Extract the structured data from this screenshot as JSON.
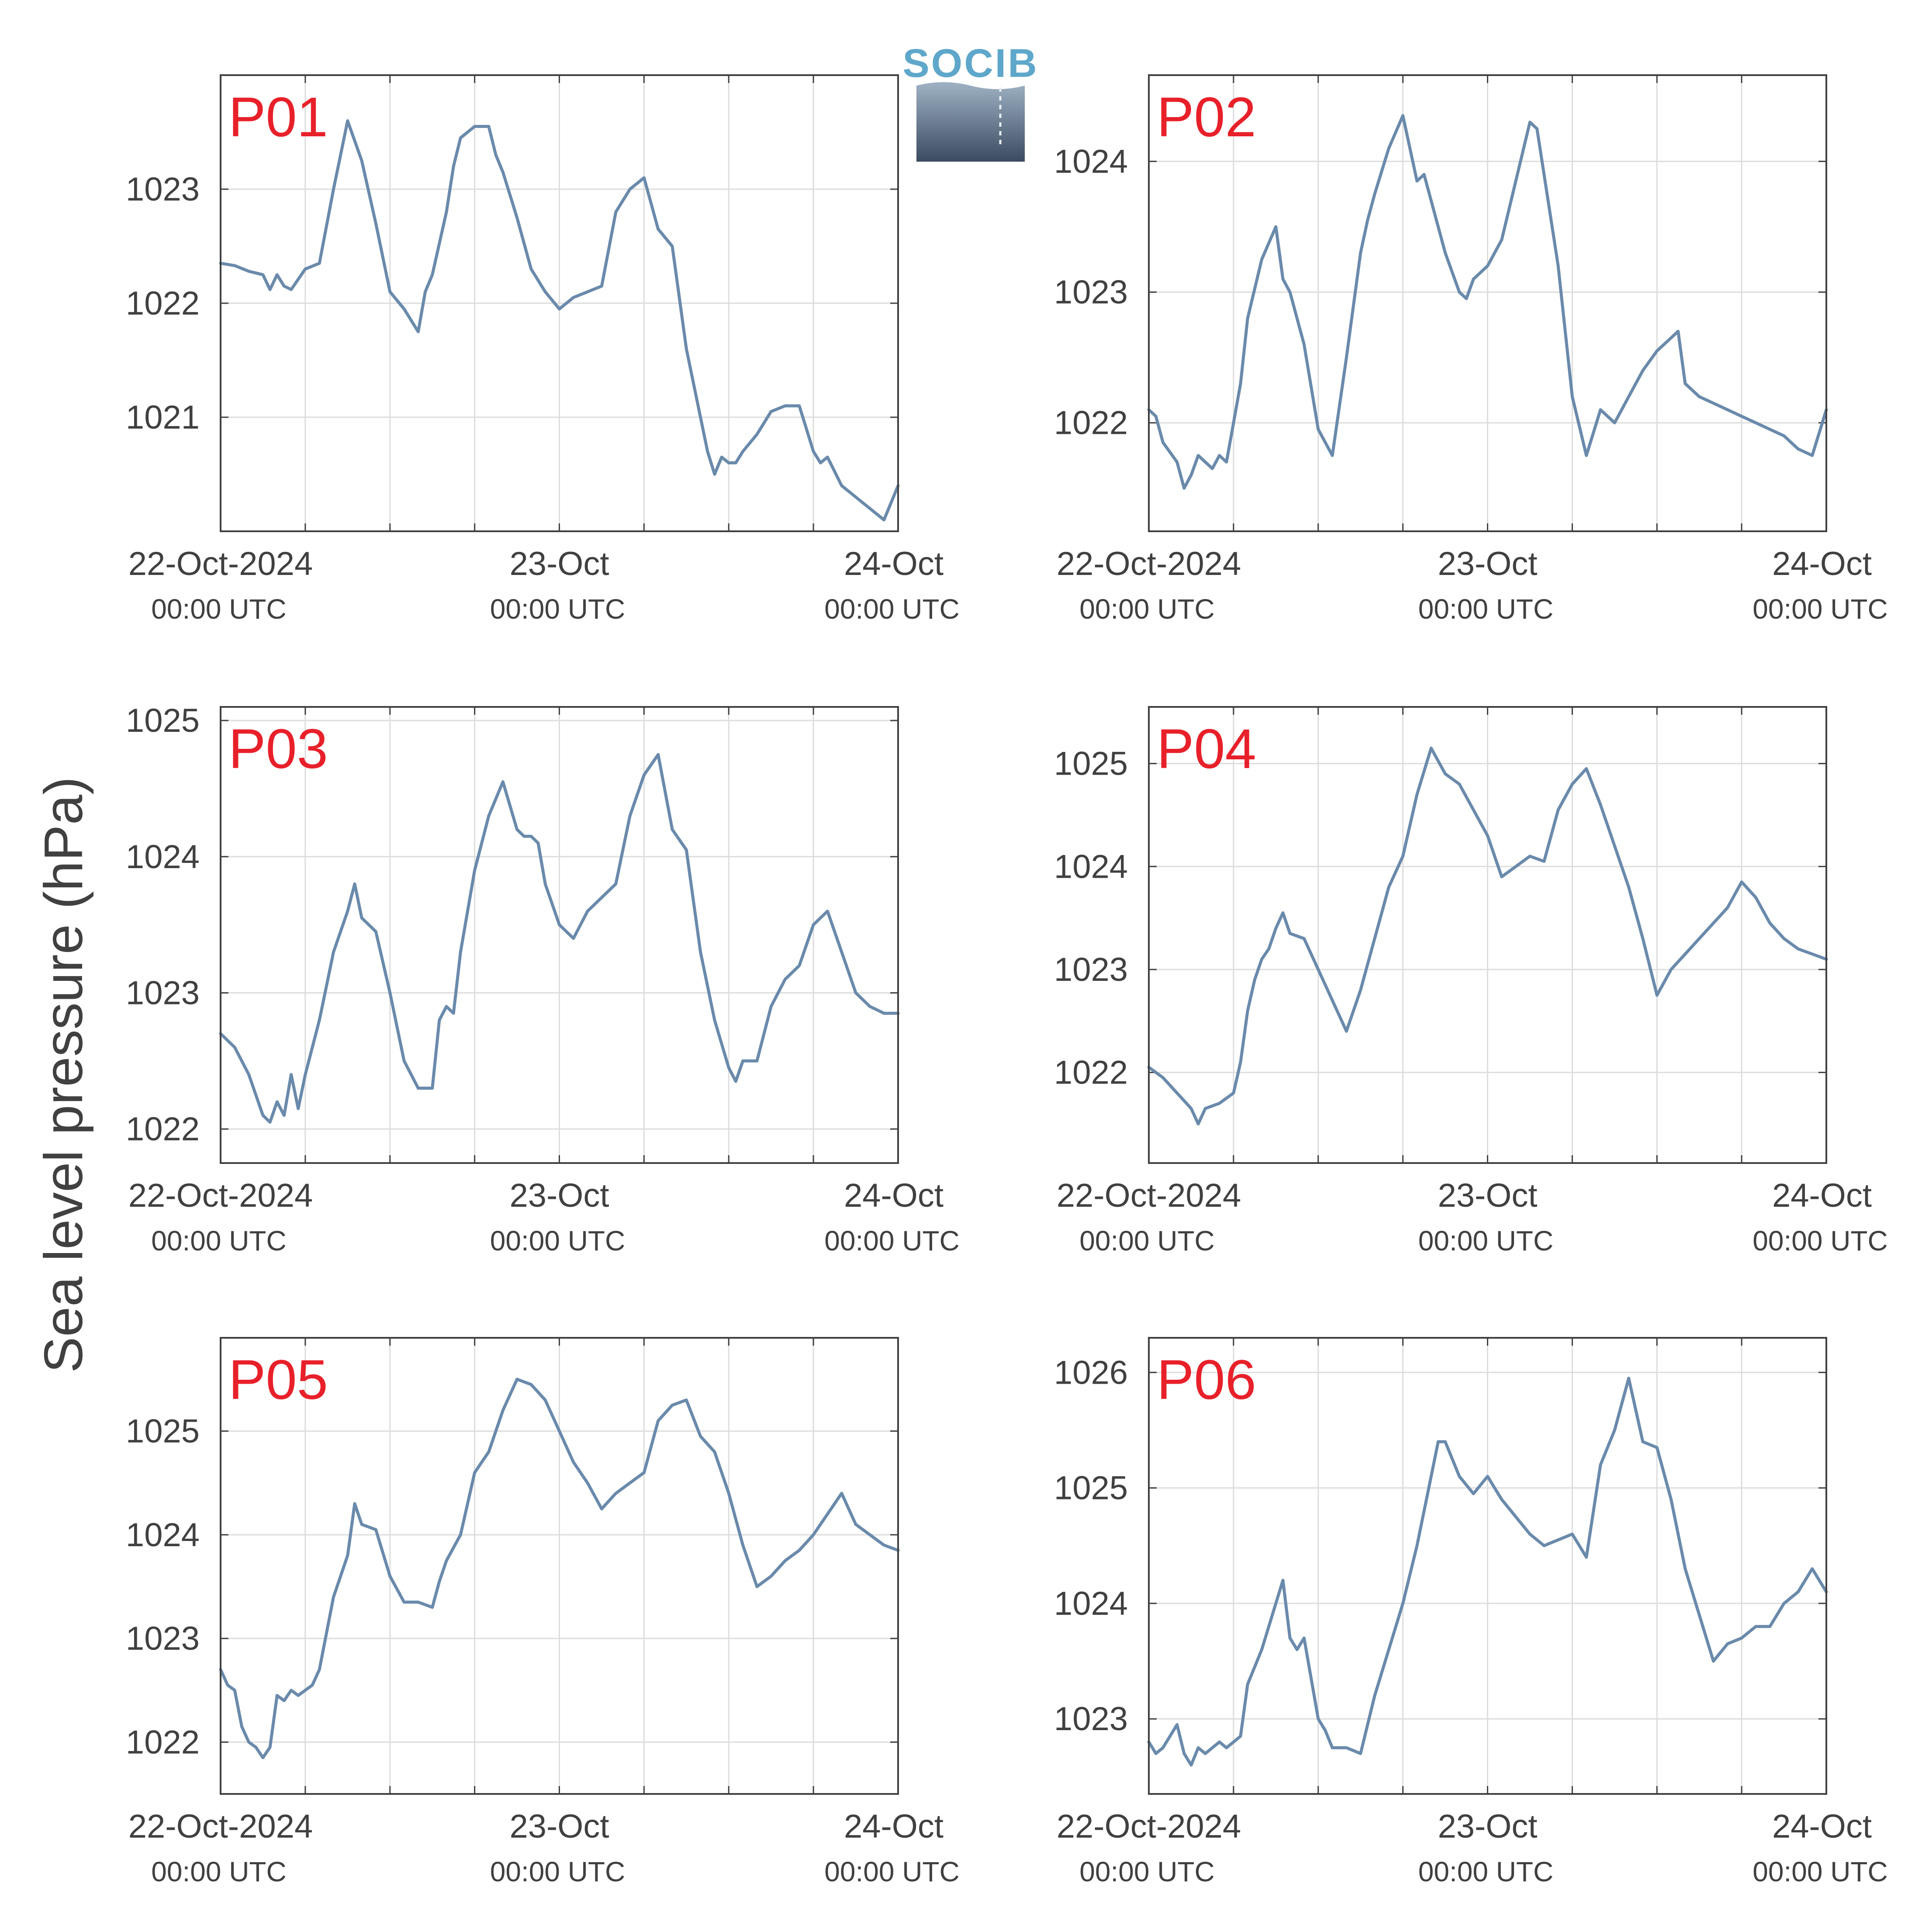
{
  "figure": {
    "ylabel": "Sea level pressure (hPa)",
    "logo_text": "SOCIB",
    "colors": {
      "line": "#6a8aab",
      "panel_label": "#e8202a",
      "grid": "#dddddd",
      "axis": "#404040"
    }
  },
  "chart_data": [
    {
      "type": "line",
      "title": "P01",
      "ylabel": "Sea level pressure (hPa)",
      "xlim_hours": [
        0,
        48
      ],
      "ylim": [
        20.0,
        24.0
      ],
      "yoffset": 1000,
      "yticks": [
        1021,
        1022,
        1023
      ],
      "xticks": [
        {
          "date": "22-Oct-2024",
          "time": "00:00 UTC"
        },
        {
          "date": "23-Oct",
          "time": "00:00 UTC"
        },
        {
          "date": "24-Oct",
          "time": "00:00 UTC"
        }
      ],
      "grid": true,
      "series": [
        {
          "x": [
            0,
            1,
            2,
            3,
            3.5,
            4,
            4.5,
            5,
            6,
            7,
            8,
            8.5,
            9,
            10,
            11,
            12,
            13,
            14,
            14.5,
            15,
            16,
            16.5,
            17,
            18,
            19,
            19.5,
            20,
            21,
            22,
            23,
            24,
            25,
            26,
            27,
            28,
            29,
            30,
            31,
            32,
            33,
            34,
            34.5,
            35,
            35.5,
            36,
            36.5,
            37,
            38,
            39,
            40,
            41,
            41.5,
            42,
            42.5,
            43,
            44,
            45,
            46,
            47,
            48
          ],
          "y": [
            22.35,
            22.33,
            22.28,
            22.25,
            22.12,
            22.25,
            22.15,
            22.12,
            22.3,
            22.35,
            23.0,
            23.3,
            23.6,
            23.25,
            22.7,
            22.1,
            21.95,
            21.75,
            22.1,
            22.25,
            22.8,
            23.2,
            23.45,
            23.55,
            23.55,
            23.3,
            23.15,
            22.75,
            22.3,
            22.1,
            21.95,
            22.05,
            22.1,
            22.15,
            22.8,
            23.0,
            23.1,
            22.65,
            22.5,
            21.6,
            21.0,
            20.7,
            20.5,
            20.65,
            20.6,
            20.6,
            20.7,
            20.85,
            21.05,
            21.1,
            21.1,
            20.9,
            20.7,
            20.6,
            20.65,
            20.4,
            20.3,
            20.2,
            20.1,
            20.4
          ]
        }
      ]
    },
    {
      "type": "line",
      "title": "P02",
      "ylabel": "Sea level pressure (hPa)",
      "xlim_hours": [
        0,
        48
      ],
      "ylim": [
        21.17,
        24.66
      ],
      "yoffset": 1000,
      "yticks": [
        1022,
        1023,
        1024
      ],
      "xticks": [
        {
          "date": "22-Oct-2024",
          "time": "00:00 UTC"
        },
        {
          "date": "23-Oct",
          "time": "00:00 UTC"
        },
        {
          "date": "24-Oct",
          "time": "00:00 UTC"
        }
      ],
      "grid": true,
      "series": [
        {
          "x": [
            0,
            0.5,
            1,
            2,
            2.5,
            3,
            3.5,
            4,
            4.5,
            5,
            5.5,
            6,
            6.5,
            7,
            8,
            9,
            9.5,
            10,
            11,
            12,
            13,
            14,
            15,
            15.5,
            16,
            17,
            18,
            19,
            19.5,
            20,
            21,
            22,
            22.5,
            23,
            24,
            25,
            26,
            27,
            27.5,
            28,
            29,
            30,
            31,
            32,
            33,
            33.5,
            34,
            35,
            36,
            37,
            37.5,
            38,
            39,
            40,
            41,
            42,
            43,
            44,
            45,
            45.5,
            46,
            47,
            48
          ],
          "y": [
            22.1,
            22.05,
            21.85,
            21.7,
            21.5,
            21.6,
            21.75,
            21.7,
            21.65,
            21.75,
            21.7,
            22.0,
            22.3,
            22.8,
            23.25,
            23.5,
            23.1,
            23.0,
            22.6,
            21.95,
            21.75,
            22.5,
            23.3,
            23.55,
            23.75,
            24.1,
            24.35,
            23.85,
            23.9,
            23.7,
            23.3,
            23.0,
            22.95,
            23.1,
            23.2,
            23.4,
            23.85,
            24.3,
            24.25,
            23.9,
            23.2,
            22.2,
            21.75,
            22.1,
            22.0,
            22.1,
            22.2,
            22.4,
            22.55,
            22.65,
            22.7,
            22.3,
            22.2,
            22.15,
            22.1,
            22.05,
            22.0,
            21.95,
            21.9,
            21.85,
            21.8,
            21.75,
            22.1
          ]
        }
      ]
    },
    {
      "type": "line",
      "title": "P03",
      "ylabel": "Sea level pressure (hPa)",
      "xlim_hours": [
        0,
        48
      ],
      "ylim": [
        21.75,
        25.1
      ],
      "yoffset": 1000,
      "yticks": [
        1022,
        1023,
        1024,
        1025
      ],
      "xticks": [
        {
          "date": "22-Oct-2024",
          "time": "00:00 UTC"
        },
        {
          "date": "23-Oct",
          "time": "00:00 UTC"
        },
        {
          "date": "24-Oct",
          "time": "00:00 UTC"
        }
      ],
      "grid": true,
      "series": [
        {
          "x": [
            0,
            1,
            2,
            3,
            3.5,
            4,
            4.5,
            5,
            5.5,
            6,
            7,
            8,
            9,
            9.5,
            10,
            10.5,
            11,
            12,
            13,
            14,
            15,
            15.5,
            16,
            16.5,
            17,
            18,
            19,
            20,
            21,
            21.5,
            22,
            22.5,
            23,
            24,
            25,
            26,
            27,
            28,
            29,
            30,
            31,
            32,
            33,
            34,
            35,
            36,
            36.5,
            37,
            38,
            39,
            40,
            41,
            42,
            43,
            44,
            45,
            46,
            47,
            48
          ],
          "y": [
            22.7,
            22.6,
            22.4,
            22.1,
            22.05,
            22.2,
            22.1,
            22.4,
            22.15,
            22.4,
            22.8,
            23.3,
            23.6,
            23.8,
            23.55,
            23.5,
            23.45,
            23.0,
            22.5,
            22.3,
            22.3,
            22.8,
            22.9,
            22.85,
            23.3,
            23.9,
            24.3,
            24.55,
            24.2,
            24.15,
            24.15,
            24.1,
            23.8,
            23.5,
            23.4,
            23.6,
            23.7,
            23.8,
            24.3,
            24.6,
            24.75,
            24.2,
            24.05,
            23.3,
            22.8,
            22.45,
            22.35,
            22.5,
            22.5,
            22.9,
            23.1,
            23.2,
            23.5,
            23.6,
            23.3,
            23.0,
            22.9,
            22.85,
            22.85
          ]
        }
      ]
    },
    {
      "type": "line",
      "title": "P04",
      "ylabel": "Sea level pressure (hPa)",
      "xlim_hours": [
        0,
        48
      ],
      "ylim": [
        21.12,
        25.55
      ],
      "yoffset": 1000,
      "yticks": [
        1022,
        1023,
        1024,
        1025
      ],
      "xticks": [
        {
          "date": "22-Oct-2024",
          "time": "00:00 UTC"
        },
        {
          "date": "23-Oct",
          "time": "00:00 UTC"
        },
        {
          "date": "24-Oct",
          "time": "00:00 UTC"
        }
      ],
      "grid": true,
      "series": [
        {
          "x": [
            0,
            1,
            2,
            3,
            3.5,
            4,
            5,
            6,
            6.5,
            7,
            7.5,
            8,
            8.5,
            9,
            9.5,
            10,
            11,
            12,
            13,
            14,
            15,
            16,
            17,
            18,
            19,
            20,
            21,
            22,
            23,
            24,
            25,
            26,
            27,
            28,
            29,
            30,
            31,
            32,
            33,
            34,
            35,
            36,
            37,
            38,
            39,
            40,
            41,
            42,
            43,
            44,
            45,
            46,
            47,
            48
          ],
          "y": [
            22.05,
            21.95,
            21.8,
            21.65,
            21.5,
            21.65,
            21.7,
            21.8,
            22.1,
            22.6,
            22.9,
            23.1,
            23.2,
            23.4,
            23.55,
            23.35,
            23.3,
            23.0,
            22.7,
            22.4,
            22.8,
            23.3,
            23.8,
            24.1,
            24.7,
            25.15,
            24.9,
            24.8,
            24.55,
            24.3,
            23.9,
            24.0,
            24.1,
            24.05,
            24.55,
            24.8,
            24.95,
            24.6,
            24.2,
            23.8,
            23.3,
            22.75,
            23.0,
            23.15,
            23.3,
            23.45,
            23.6,
            23.85,
            23.7,
            23.45,
            23.3,
            23.2,
            23.15,
            23.1
          ]
        }
      ]
    },
    {
      "type": "line",
      "title": "P05",
      "ylabel": "Sea level pressure (hPa)",
      "xlim_hours": [
        0,
        48
      ],
      "ylim": [
        21.5,
        25.9
      ],
      "yoffset": 1000,
      "yticks": [
        1022,
        1023,
        1024,
        1025
      ],
      "xticks": [
        {
          "date": "22-Oct-2024",
          "time": "00:00 UTC"
        },
        {
          "date": "23-Oct",
          "time": "00:00 UTC"
        },
        {
          "date": "24-Oct",
          "time": "00:00 UTC"
        }
      ],
      "grid": true,
      "series": [
        {
          "x": [
            0,
            0.5,
            1,
            1.5,
            2,
            2.5,
            3,
            3.5,
            4,
            4.5,
            5,
            5.5,
            6,
            6.5,
            7,
            8,
            9,
            9.5,
            10,
            11,
            12,
            13,
            14,
            15,
            15.5,
            16,
            17,
            18,
            19,
            20,
            21,
            22,
            23,
            24,
            25,
            26,
            27,
            28,
            29,
            30,
            31,
            32,
            33,
            34,
            35,
            36,
            37,
            38,
            39,
            40,
            41,
            42,
            43,
            44,
            45,
            46,
            47,
            48
          ],
          "y": [
            22.7,
            22.55,
            22.5,
            22.15,
            22.0,
            21.95,
            21.85,
            21.95,
            22.45,
            22.4,
            22.5,
            22.45,
            22.5,
            22.55,
            22.7,
            23.4,
            23.8,
            24.3,
            24.1,
            24.05,
            23.6,
            23.35,
            23.35,
            23.3,
            23.55,
            23.75,
            24.0,
            24.6,
            24.8,
            25.2,
            25.5,
            25.45,
            25.3,
            25.0,
            24.7,
            24.5,
            24.25,
            24.4,
            24.5,
            24.6,
            25.1,
            25.25,
            25.3,
            24.95,
            24.8,
            24.4,
            23.9,
            23.5,
            23.6,
            23.75,
            23.85,
            24.0,
            24.2,
            24.4,
            24.1,
            24.0,
            23.9,
            23.85
          ]
        }
      ]
    },
    {
      "type": "line",
      "title": "P06",
      "ylabel": "Sea level pressure (hPa)",
      "xlim_hours": [
        0,
        48
      ],
      "ylim": [
        22.35,
        26.3
      ],
      "yoffset": 1000,
      "yticks": [
        1023,
        1024,
        1025,
        1026
      ],
      "xticks": [
        {
          "date": "22-Oct-2024",
          "time": "00:00 UTC"
        },
        {
          "date": "23-Oct",
          "time": "00:00 UTC"
        },
        {
          "date": "24-Oct",
          "time": "00:00 UTC"
        }
      ],
      "grid": true,
      "series": [
        {
          "x": [
            0,
            0.5,
            1,
            1.5,
            2,
            2.5,
            3,
            3.5,
            4,
            4.5,
            5,
            5.5,
            6,
            6.5,
            7,
            8,
            9,
            9.5,
            10,
            10.5,
            11,
            12,
            12.5,
            13,
            14,
            15,
            16,
            17,
            18,
            19,
            19.5,
            20,
            20.5,
            21,
            22,
            23,
            24,
            25,
            26,
            27,
            28,
            29,
            30,
            31,
            32,
            33,
            34,
            35,
            36,
            37,
            38,
            39,
            40,
            41,
            42,
            43,
            44,
            45,
            46,
            47,
            48
          ],
          "y": [
            22.8,
            22.7,
            22.75,
            22.85,
            22.95,
            22.7,
            22.6,
            22.75,
            22.7,
            22.75,
            22.8,
            22.75,
            22.8,
            22.85,
            23.3,
            23.6,
            24.0,
            24.2,
            23.7,
            23.6,
            23.7,
            23.0,
            22.9,
            22.75,
            22.75,
            22.7,
            23.2,
            23.6,
            24.0,
            24.5,
            24.8,
            25.1,
            25.4,
            25.4,
            25.1,
            24.95,
            25.1,
            24.9,
            24.75,
            24.6,
            24.5,
            24.55,
            24.6,
            24.4,
            25.2,
            25.5,
            25.95,
            25.4,
            25.35,
            24.9,
            24.3,
            23.9,
            23.5,
            23.65,
            23.7,
            23.8,
            23.8,
            24.0,
            24.1,
            24.3,
            24.1
          ]
        }
      ]
    }
  ]
}
